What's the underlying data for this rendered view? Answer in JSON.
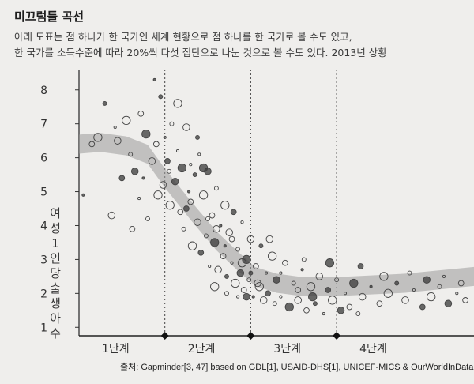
{
  "header": {
    "title": "미끄럼틀 곡선",
    "subtitle_line1": "아래 도표는 점 하나가 한 국가인 세계 현황으로 점 하나를 한 국가로 볼 수도 있고,",
    "subtitle_line2": "한 국가를 소득수준에 따라 20%씩 다섯 집단으로 나눈 것으로 볼 수도 있다. 2013년 상황"
  },
  "source": "출처: Gapminder[3, 47] based on GDL[1], USAID-DHS[1], UNICEF-MICS & OurWorldInData",
  "chart_data": {
    "type": "scatter",
    "ylabel": "여성 1인당 출생아 수",
    "ylim": [
      1,
      8
    ],
    "yticks": [
      1,
      2,
      3,
      4,
      5,
      6,
      7,
      8
    ],
    "xlim": [
      0,
      4.6
    ],
    "stage_labels": [
      "1단계",
      "2단계",
      "3단계",
      "4단계"
    ],
    "stage_boundaries": [
      1,
      2,
      3
    ],
    "trend_band": {
      "x": [
        0,
        0.25,
        0.55,
        0.8,
        1.0,
        1.3,
        1.6,
        1.85,
        2.05,
        2.3,
        2.6,
        3.0,
        3.4,
        3.8,
        4.2,
        4.6
      ],
      "center": [
        6.4,
        6.45,
        6.35,
        6.1,
        5.4,
        4.45,
        3.55,
        2.95,
        2.5,
        2.3,
        2.2,
        2.2,
        2.25,
        2.3,
        2.4,
        2.5
      ],
      "half_width": 0.28
    },
    "points": [
      [
        0.05,
        4.9
      ],
      [
        0.15,
        6.4
      ],
      [
        0.22,
        6.6
      ],
      [
        0.3,
        7.6
      ],
      [
        0.38,
        4.3
      ],
      [
        0.42,
        6.9
      ],
      [
        0.5,
        5.4
      ],
      [
        0.55,
        7.1
      ],
      [
        0.6,
        6.1
      ],
      [
        0.65,
        5.6
      ],
      [
        0.7,
        4.8
      ],
      [
        0.72,
        7.3
      ],
      [
        0.78,
        6.7
      ],
      [
        0.8,
        4.2
      ],
      [
        0.85,
        5.9
      ],
      [
        0.88,
        8.3
      ],
      [
        0.9,
        6.4
      ],
      [
        0.92,
        4.9
      ],
      [
        0.95,
        7.8
      ],
      [
        0.98,
        5.2
      ],
      [
        1.0,
        6.6
      ],
      [
        1.03,
        5.9
      ],
      [
        1.06,
        4.6
      ],
      [
        1.08,
        7.0
      ],
      [
        1.12,
        5.3
      ],
      [
        1.15,
        6.2
      ],
      [
        1.18,
        4.4
      ],
      [
        1.2,
        5.7
      ],
      [
        1.22,
        3.9
      ],
      [
        1.25,
        6.9
      ],
      [
        1.28,
        5.0
      ],
      [
        1.3,
        4.7
      ],
      [
        1.32,
        3.4
      ],
      [
        1.35,
        5.5
      ],
      [
        1.38,
        4.1
      ],
      [
        1.4,
        6.1
      ],
      [
        1.42,
        3.2
      ],
      [
        1.45,
        4.9
      ],
      [
        1.48,
        3.7
      ],
      [
        1.5,
        5.6
      ],
      [
        1.52,
        2.8
      ],
      [
        1.55,
        4.3
      ],
      [
        1.58,
        3.5
      ],
      [
        1.6,
        5.1
      ],
      [
        1.62,
        2.7
      ],
      [
        1.65,
        4.0
      ],
      [
        1.68,
        3.1
      ],
      [
        1.7,
        4.6
      ],
      [
        1.72,
        2.5
      ],
      [
        1.75,
        3.8
      ],
      [
        1.78,
        2.9
      ],
      [
        1.8,
        4.4
      ],
      [
        1.82,
        2.3
      ],
      [
        1.85,
        3.3
      ],
      [
        1.88,
        2.6
      ],
      [
        1.9,
        4.1
      ],
      [
        1.92,
        2.1
      ],
      [
        1.95,
        3.0
      ],
      [
        1.98,
        2.4
      ],
      [
        2.0,
        3.6
      ],
      [
        2.03,
        1.9
      ],
      [
        2.06,
        2.8
      ],
      [
        2.1,
        2.2
      ],
      [
        2.12,
        3.4
      ],
      [
        2.15,
        1.8
      ],
      [
        2.18,
        2.6
      ],
      [
        2.2,
        2.0
      ],
      [
        2.25,
        3.1
      ],
      [
        2.28,
        1.7
      ],
      [
        2.3,
        2.4
      ],
      [
        2.35,
        1.9
      ],
      [
        2.4,
        2.9
      ],
      [
        2.45,
        1.6
      ],
      [
        2.5,
        2.3
      ],
      [
        2.55,
        1.8
      ],
      [
        2.6,
        2.7
      ],
      [
        2.65,
        1.5
      ],
      [
        2.7,
        2.2
      ],
      [
        2.75,
        1.7
      ],
      [
        2.8,
        2.5
      ],
      [
        2.85,
        1.4
      ],
      [
        2.9,
        2.1
      ],
      [
        2.95,
        1.8
      ],
      [
        3.0,
        2.4
      ],
      [
        3.05,
        1.5
      ],
      [
        3.1,
        2.0
      ],
      [
        3.15,
        1.6
      ],
      [
        3.2,
        2.3
      ],
      [
        3.25,
        1.4
      ],
      [
        3.3,
        1.9
      ],
      [
        3.4,
        2.2
      ],
      [
        3.5,
        1.7
      ],
      [
        3.6,
        2.0
      ],
      [
        3.7,
        2.3
      ],
      [
        3.8,
        1.8
      ],
      [
        3.9,
        2.1
      ],
      [
        4.0,
        1.6
      ],
      [
        4.1,
        1.9
      ],
      [
        4.2,
        2.2
      ],
      [
        4.3,
        1.7
      ],
      [
        4.4,
        2.0
      ],
      [
        4.5,
        1.8
      ],
      [
        1.45,
        5.7
      ],
      [
        1.5,
        4.2
      ],
      [
        1.6,
        3.9
      ],
      [
        1.7,
        3.4
      ],
      [
        1.78,
        3.6
      ],
      [
        1.9,
        2.9
      ],
      [
        2.0,
        2.6
      ],
      [
        2.08,
        2.3
      ],
      [
        1.3,
        5.8
      ],
      [
        1.25,
        4.5
      ],
      [
        1.58,
        2.2
      ],
      [
        1.72,
        2.0
      ],
      [
        1.95,
        1.9
      ],
      [
        2.35,
        2.6
      ],
      [
        2.55,
        2.1
      ],
      [
        2.72,
        1.9
      ],
      [
        1.05,
        5.6
      ],
      [
        0.45,
        6.5
      ],
      [
        0.75,
        5.4
      ],
      [
        0.62,
        3.9
      ],
      [
        1.15,
        7.6
      ],
      [
        1.38,
        6.6
      ],
      [
        2.22,
        3.6
      ],
      [
        1.85,
        1.9
      ],
      [
        3.28,
        2.8
      ],
      [
        3.55,
        2.5
      ],
      [
        3.85,
        2.6
      ],
      [
        4.05,
        2.4
      ],
      [
        4.25,
        2.5
      ],
      [
        4.45,
        2.3
      ],
      [
        2.92,
        2.9
      ],
      [
        2.62,
        3.0
      ]
    ]
  }
}
